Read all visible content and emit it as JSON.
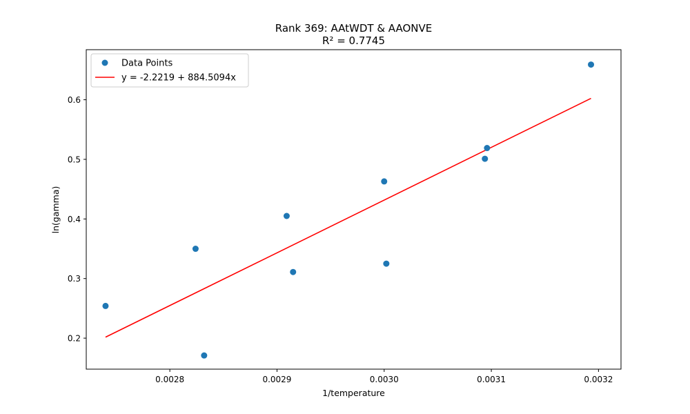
{
  "chart_data": {
    "type": "scatter",
    "title": "Rank 369: AAtWDT & AAONVE",
    "subtitle": "R² = 0.7745",
    "xlabel": "1/temperature",
    "ylabel": "ln(gamma)",
    "xlim": [
      0.002722,
      0.003221
    ],
    "ylim": [
      0.148,
      0.684
    ],
    "xticks": [
      0.0028,
      0.0029,
      0.003,
      0.0031,
      0.0032
    ],
    "xtick_labels": [
      "0.0028",
      "0.0029",
      "0.0030",
      "0.0031",
      "0.0032"
    ],
    "yticks": [
      0.2,
      0.3,
      0.4,
      0.5,
      0.6
    ],
    "ytick_labels": [
      "0.2",
      "0.3",
      "0.4",
      "0.5",
      "0.6"
    ],
    "grid": false,
    "legend_position": "top-left",
    "series": [
      {
        "name": "Data Points",
        "kind": "scatter",
        "color": "#1f77b4",
        "x": [
          0.00274,
          0.002824,
          0.002832,
          0.002909,
          0.002915,
          0.003,
          0.003002,
          0.003094,
          0.003096,
          0.003193
        ],
        "y": [
          0.254,
          0.35,
          0.171,
          0.405,
          0.311,
          0.463,
          0.325,
          0.501,
          0.519,
          0.659
        ]
      },
      {
        "name": "y = -2.2219 + 884.5094x",
        "kind": "line",
        "color": "#ff0000",
        "intercept": -2.2219,
        "slope": 884.5094,
        "x_range": [
          0.00274,
          0.003193
        ]
      }
    ]
  }
}
